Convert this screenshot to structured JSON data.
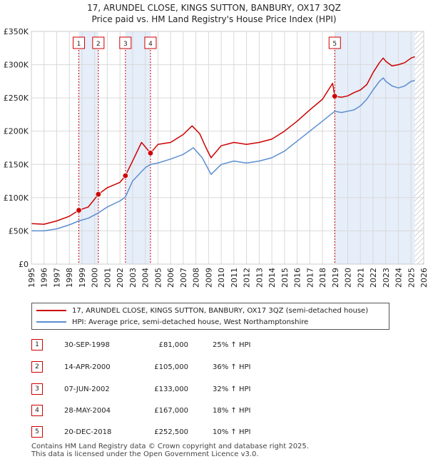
{
  "title_line1": "17, ARUNDEL CLOSE, KINGS SUTTON, BANBURY, OX17 3QZ",
  "title_line2": "Price paid vs. HM Land Registry's House Price Index (HPI)",
  "colors": {
    "property": "#cc0000",
    "hpi": "#5b8ed1",
    "shade": "#dde8f7",
    "grid": "#d9d9d9",
    "marker_border": "#cc0000",
    "hatch": "#aaaaaa"
  },
  "legend": {
    "property_label": "17, ARUNDEL CLOSE, KINGS SUTTON, BANBURY, OX17 3QZ (semi-detached house)",
    "hpi_label": "HPI: Average price, semi-detached house, West Northamptonshire"
  },
  "sales": [
    {
      "num": "1",
      "date": "30-SEP-1998",
      "price": "£81,000",
      "hpi": "25% ↑ HPI"
    },
    {
      "num": "2",
      "date": "14-APR-2000",
      "price": "£105,000",
      "hpi": "36% ↑ HPI"
    },
    {
      "num": "3",
      "date": "07-JUN-2002",
      "price": "£133,000",
      "hpi": "32% ↑ HPI"
    },
    {
      "num": "4",
      "date": "28-MAY-2004",
      "price": "£167,000",
      "hpi": "18% ↑ HPI"
    },
    {
      "num": "5",
      "date": "20-DEC-2018",
      "price": "£252,500",
      "hpi": "10% ↑ HPI"
    }
  ],
  "footer_line1": "Contains HM Land Registry data © Crown copyright and database right 2025.",
  "footer_line2": "This data is licensed under the Open Government Licence v3.0.",
  "chart_data": {
    "type": "line",
    "title": "17, ARUNDEL CLOSE, KINGS SUTTON, BANBURY, OX17 3QZ — Price paid vs. HM Land Registry's House Price Index (HPI)",
    "xlabel": "",
    "ylabel": "",
    "xlim": [
      1995,
      2026
    ],
    "ylim": [
      0,
      350000
    ],
    "x_ticks": [
      "1995",
      "1996",
      "1997",
      "1998",
      "1999",
      "2000",
      "2001",
      "2002",
      "2003",
      "2004",
      "2005",
      "2006",
      "2007",
      "2008",
      "2009",
      "2010",
      "2011",
      "2012",
      "2013",
      "2014",
      "2015",
      "2016",
      "2017",
      "2018",
      "2019",
      "2020",
      "2021",
      "2022",
      "2023",
      "2024",
      "2025",
      "2026"
    ],
    "y_ticks": [
      {
        "value": 0,
        "label": "£0"
      },
      {
        "value": 50000,
        "label": "£50K"
      },
      {
        "value": 100000,
        "label": "£100K"
      },
      {
        "value": 150000,
        "label": "£150K"
      },
      {
        "value": 200000,
        "label": "£200K"
      },
      {
        "value": 250000,
        "label": "£250K"
      },
      {
        "value": 300000,
        "label": "£300K"
      },
      {
        "value": 350000,
        "label": "£350K"
      }
    ],
    "grid": true,
    "shaded_ranges": [
      [
        1998.75,
        2000.29
      ],
      [
        2002.43,
        2004.41
      ],
      [
        2018.97,
        2025.3
      ]
    ],
    "future_from": 2025.3,
    "sales": [
      {
        "num": "1",
        "x": 1998.75,
        "y": 81000
      },
      {
        "num": "2",
        "x": 2000.29,
        "y": 105000
      },
      {
        "num": "3",
        "x": 2002.43,
        "y": 133000
      },
      {
        "num": "4",
        "x": 2004.41,
        "y": 167000
      },
      {
        "num": "5",
        "x": 2018.97,
        "y": 252500
      }
    ],
    "series": [
      {
        "name": "17, ARUNDEL CLOSE, KINGS SUTTON, BANBURY, OX17 3QZ (semi-detached house)",
        "x": [
          1995,
          1996,
          1997,
          1998,
          1998.75,
          1999.5,
          2000.29,
          2001,
          2002,
          2002.43,
          2003,
          2003.7,
          2004.41,
          2005,
          2006,
          2007,
          2007.7,
          2008.3,
          2008.8,
          2009.2,
          2010,
          2011,
          2012,
          2013,
          2014,
          2015,
          2016,
          2017,
          2018,
          2018.8,
          2018.97,
          2019.5,
          2020,
          2020.5,
          2021,
          2021.5,
          2022,
          2022.5,
          2022.8,
          2023,
          2023.5,
          2024,
          2024.5,
          2025,
          2025.3
        ],
        "y": [
          61000,
          60000,
          65000,
          72000,
          81000,
          86000,
          105000,
          115000,
          123000,
          133000,
          155000,
          183000,
          167000,
          180000,
          183000,
          195000,
          208000,
          196000,
          175000,
          160000,
          178000,
          183000,
          180000,
          183000,
          188000,
          200000,
          215000,
          232000,
          248000,
          272000,
          252500,
          251000,
          253000,
          258000,
          262000,
          270000,
          288000,
          303000,
          310000,
          305000,
          298000,
          300000,
          303000,
          310000,
          312000
        ]
      },
      {
        "name": "HPI: Average price, semi-detached house, West Northamptonshire",
        "x": [
          1995,
          1996,
          1997,
          1998,
          1998.75,
          1999.5,
          2000.29,
          2001,
          2002,
          2002.43,
          2003,
          2004,
          2004.41,
          2005,
          2006,
          2007,
          2007.8,
          2008.5,
          2009.2,
          2010,
          2011,
          2012,
          2013,
          2014,
          2015,
          2016,
          2017,
          2018,
          2018.97,
          2019.5,
          2020,
          2020.5,
          2021,
          2021.5,
          2022,
          2022.5,
          2022.8,
          2023,
          2023.5,
          2024,
          2024.5,
          2025,
          2025.3
        ],
        "y": [
          50000,
          50000,
          53000,
          59000,
          65000,
          69000,
          77000,
          86000,
          95000,
          101000,
          125000,
          145000,
          150000,
          152000,
          158000,
          165000,
          175000,
          160000,
          135000,
          150000,
          155000,
          152000,
          155000,
          160000,
          170000,
          185000,
          200000,
          215000,
          230000,
          228000,
          230000,
          232000,
          238000,
          248000,
          262000,
          275000,
          280000,
          275000,
          268000,
          265000,
          268000,
          275000,
          276000
        ]
      }
    ]
  }
}
